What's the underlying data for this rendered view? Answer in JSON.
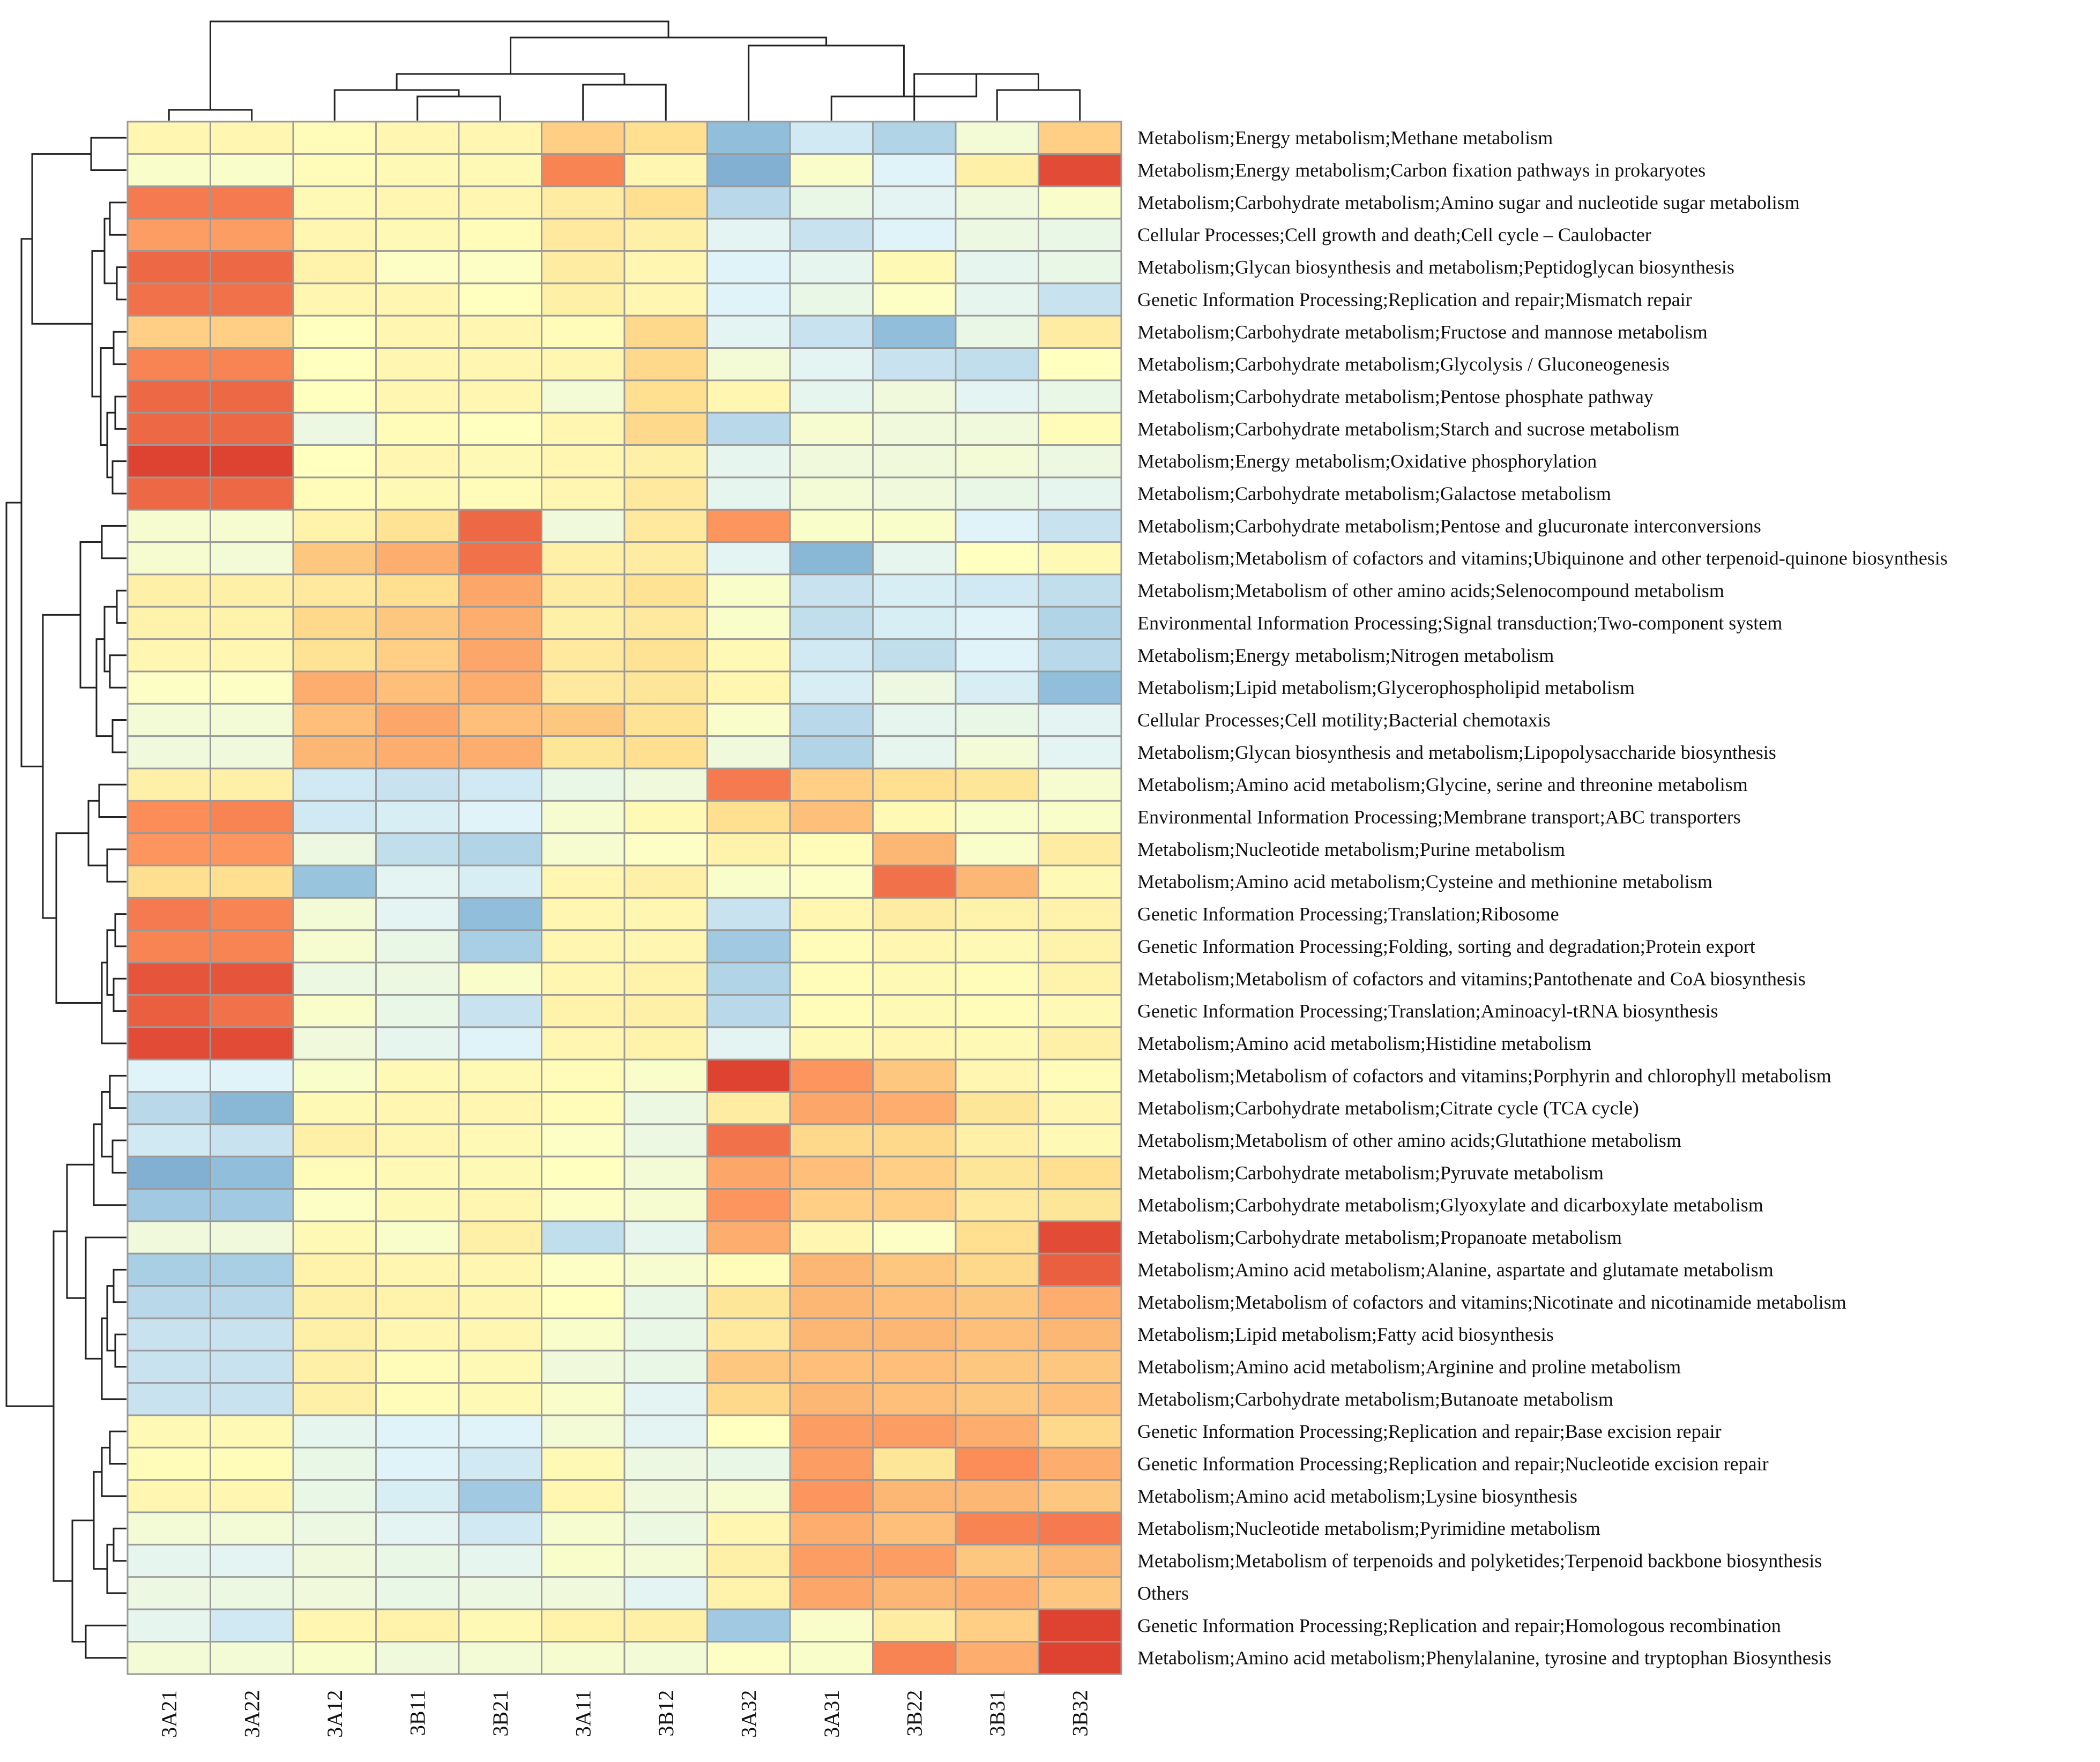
{
  "chart_data": {
    "type": "heatmap",
    "title": "",
    "columns": [
      "3A21",
      "3A22",
      "3A12",
      "3B11",
      "3B21",
      "3A11",
      "3B12",
      "3A32",
      "3A31",
      "3B22",
      "3B31",
      "3B32"
    ],
    "rows": [
      "Metabolism;Energy metabolism;Methane metabolism",
      "Metabolism;Energy metabolism;Carbon fixation pathways in prokaryotes",
      "Metabolism;Carbohydrate metabolism;Amino sugar and nucleotide sugar metabolism",
      "Cellular Processes;Cell growth and death;Cell cycle – Caulobacter",
      "Metabolism;Glycan biosynthesis and metabolism;Peptidoglycan biosynthesis",
      "Genetic Information Processing;Replication and repair;Mismatch repair",
      "Metabolism;Carbohydrate metabolism;Fructose and mannose metabolism",
      "Metabolism;Carbohydrate metabolism;Glycolysis / Gluconeogenesis",
      "Metabolism;Carbohydrate metabolism;Pentose phosphate pathway",
      "Metabolism;Carbohydrate metabolism;Starch and sucrose metabolism",
      "Metabolism;Energy metabolism;Oxidative phosphorylation",
      "Metabolism;Carbohydrate metabolism;Galactose metabolism",
      "Metabolism;Carbohydrate metabolism;Pentose and glucuronate interconversions",
      "Metabolism;Metabolism of cofactors and vitamins;Ubiquinone and other terpenoid-quinone biosynthesis",
      "Metabolism;Metabolism of other amino acids;Selenocompound metabolism",
      "Environmental Information Processing;Signal transduction;Two-component system",
      "Metabolism;Energy metabolism;Nitrogen metabolism",
      "Metabolism;Lipid metabolism;Glycerophospholipid metabolism",
      "Cellular Processes;Cell motility;Bacterial chemotaxis",
      "Metabolism;Glycan biosynthesis and metabolism;Lipopolysaccharide biosynthesis",
      "Metabolism;Amino acid metabolism;Glycine, serine and threonine metabolism",
      "Environmental Information Processing;Membrane transport;ABC transporters",
      "Metabolism;Nucleotide metabolism;Purine metabolism",
      "Metabolism;Amino acid metabolism;Cysteine and methionine metabolism",
      "Genetic Information Processing;Translation;Ribosome",
      "Genetic Information Processing;Folding, sorting and degradation;Protein export",
      "Metabolism;Metabolism of cofactors and vitamins;Pantothenate and CoA biosynthesis",
      "Genetic Information Processing;Translation;Aminoacyl-tRNA biosynthesis",
      "Metabolism;Amino acid metabolism;Histidine metabolism",
      "Metabolism;Metabolism of cofactors and vitamins;Porphyrin and chlorophyll metabolism",
      "Metabolism;Carbohydrate metabolism;Citrate cycle (TCA cycle)",
      "Metabolism;Metabolism of other amino acids;Glutathione metabolism",
      "Metabolism;Carbohydrate metabolism;Pyruvate metabolism",
      "Metabolism;Carbohydrate metabolism;Glyoxylate and dicarboxylate metabolism",
      "Metabolism;Carbohydrate metabolism;Propanoate metabolism",
      "Metabolism;Amino acid metabolism;Alanine, aspartate and glutamate metabolism",
      "Metabolism;Metabolism of cofactors and vitamins;Nicotinate and nicotinamide metabolism",
      "Metabolism;Lipid metabolism;Fatty acid biosynthesis",
      "Metabolism;Amino acid metabolism;Arginine and proline metabolism",
      "Metabolism;Carbohydrate metabolism;Butanoate metabolism",
      "Genetic Information Processing;Replication and repair;Base excision repair",
      "Genetic Information Processing;Replication and repair;Nucleotide excision repair",
      "Metabolism;Amino acid metabolism;Lysine biosynthesis",
      "Metabolism;Nucleotide metabolism;Pyrimidine metabolism",
      "Metabolism;Metabolism of terpenoids and polyketides;Terpenoid backbone biosynthesis",
      "Others",
      "Genetic Information Processing;Replication and repair;Homologous recombination",
      "Metabolism;Amino acid metabolism;Phenylalanine, tyrosine and tryptophan Biosynthesis"
    ],
    "scale_note": "estimated relative abundance, -3 (blue) to +3 (red)",
    "value_range": [
      -3,
      3
    ],
    "values": [
      [
        0.3,
        0.3,
        0.1,
        0.3,
        0.3,
        1.2,
        1.0,
        -2.0,
        -1.2,
        -1.6,
        -0.4,
        1.2
      ],
      [
        -0.2,
        -0.2,
        0.1,
        0.2,
        0.2,
        2.1,
        0.3,
        -2.2,
        -0.2,
        -1.0,
        0.5,
        2.7
      ],
      [
        2.2,
        2.2,
        0.2,
        0.3,
        0.3,
        0.6,
        1.0,
        -1.5,
        -0.7,
        -0.9,
        -0.5,
        -0.2
      ],
      [
        1.8,
        1.8,
        0.3,
        0.2,
        0.1,
        0.7,
        0.5,
        -0.9,
        -1.3,
        -1.0,
        -0.6,
        -0.7
      ],
      [
        2.4,
        2.4,
        0.4,
        -0.1,
        -0.1,
        0.6,
        0.3,
        -1.0,
        -0.8,
        0.2,
        -0.8,
        -0.7
      ],
      [
        2.3,
        2.3,
        0.3,
        0.3,
        0.0,
        0.5,
        0.3,
        -1.0,
        -0.7,
        -0.1,
        -0.8,
        -1.3
      ],
      [
        1.2,
        1.2,
        0.0,
        0.3,
        0.3,
        0.1,
        1.1,
        -0.9,
        -1.3,
        -2.0,
        -0.7,
        0.6
      ],
      [
        2.1,
        2.1,
        0.0,
        0.3,
        0.3,
        0.3,
        1.1,
        -0.4,
        -0.9,
        -1.3,
        -1.4,
        0.0
      ],
      [
        2.4,
        2.4,
        0.0,
        0.3,
        0.3,
        -0.4,
        1.0,
        0.3,
        -0.8,
        -0.5,
        -0.9,
        -0.7
      ],
      [
        2.4,
        2.4,
        -0.6,
        0.1,
        0.0,
        0.3,
        1.1,
        -1.5,
        -0.3,
        -0.5,
        -0.5,
        0.1
      ],
      [
        2.8,
        2.8,
        0.0,
        0.3,
        0.2,
        0.3,
        0.5,
        -0.8,
        -0.5,
        -0.5,
        -0.4,
        -0.6
      ],
      [
        2.4,
        2.4,
        0.1,
        0.2,
        0.1,
        0.3,
        0.7,
        -0.8,
        -0.4,
        -0.5,
        -0.7,
        -0.8
      ],
      [
        -0.3,
        -0.3,
        0.4,
        0.9,
        2.4,
        -0.5,
        0.7,
        1.9,
        -0.2,
        -0.2,
        -1.0,
        -1.3
      ],
      [
        -0.3,
        -0.4,
        1.3,
        1.6,
        2.3,
        0.5,
        0.6,
        -0.9,
        -2.1,
        -0.8,
        0.0,
        0.2
      ],
      [
        0.5,
        0.5,
        0.7,
        1.0,
        1.7,
        0.6,
        0.9,
        -0.2,
        -1.3,
        -1.1,
        -1.2,
        -1.4
      ],
      [
        0.4,
        0.4,
        1.1,
        1.3,
        1.6,
        0.5,
        0.7,
        -0.2,
        -1.4,
        -1.1,
        -1.0,
        -1.6
      ],
      [
        0.3,
        0.3,
        0.9,
        1.2,
        1.7,
        0.7,
        0.9,
        0.2,
        -1.2,
        -1.4,
        -1.0,
        -1.5
      ],
      [
        -0.1,
        -0.1,
        1.6,
        1.4,
        1.6,
        0.7,
        0.8,
        0.3,
        -1.1,
        -0.6,
        -1.1,
        -2.0
      ],
      [
        -0.4,
        -0.4,
        1.4,
        1.7,
        1.4,
        1.3,
        0.9,
        -0.2,
        -1.5,
        -0.8,
        -0.7,
        -0.9
      ],
      [
        -0.5,
        -0.5,
        1.5,
        1.6,
        1.6,
        0.8,
        1.0,
        -0.5,
        -1.6,
        -0.8,
        -0.4,
        -0.9
      ],
      [
        0.5,
        0.5,
        -1.2,
        -1.3,
        -1.2,
        -0.7,
        -0.5,
        2.2,
        1.2,
        1.0,
        0.8,
        -0.3
      ],
      [
        2.0,
        2.1,
        -1.2,
        -1.1,
        -1.0,
        -0.3,
        0.2,
        1.0,
        1.4,
        0.2,
        -0.2,
        -0.2
      ],
      [
        1.9,
        1.9,
        -0.6,
        -1.4,
        -1.6,
        -0.3,
        -0.1,
        0.4,
        0.1,
        1.5,
        -0.2,
        0.6
      ],
      [
        1.0,
        1.0,
        -1.9,
        -0.9,
        -1.1,
        0.3,
        0.5,
        -0.2,
        -0.1,
        2.3,
        1.5,
        0.2
      ],
      [
        2.2,
        2.1,
        -0.4,
        -0.9,
        -2.0,
        0.3,
        0.3,
        -1.3,
        0.3,
        0.6,
        0.4,
        0.4
      ],
      [
        2.1,
        2.1,
        -0.3,
        -0.7,
        -1.7,
        0.3,
        0.3,
        -1.8,
        0.1,
        0.3,
        0.2,
        0.4
      ],
      [
        2.6,
        2.6,
        -0.6,
        -0.6,
        -0.2,
        0.3,
        0.4,
        -1.6,
        0.1,
        0.2,
        0.1,
        0.4
      ],
      [
        2.5,
        2.3,
        -0.2,
        -0.7,
        -1.3,
        0.4,
        0.5,
        -1.5,
        0.1,
        0.2,
        0.1,
        0.2
      ],
      [
        2.7,
        2.7,
        -0.5,
        -0.8,
        -1.0,
        0.3,
        0.4,
        -0.9,
        0.2,
        0.3,
        0.2,
        0.5
      ],
      [
        -1.0,
        -1.0,
        -0.2,
        0.2,
        0.2,
        0.1,
        -0.2,
        2.8,
        1.9,
        1.3,
        0.3,
        0.1
      ],
      [
        -1.5,
        -2.1,
        0.2,
        0.3,
        0.3,
        0.1,
        -0.6,
        0.6,
        1.7,
        1.6,
        0.8,
        0.3
      ],
      [
        -1.2,
        -1.3,
        0.5,
        0.3,
        0.2,
        -0.1,
        -0.6,
        2.3,
        1.1,
        1.1,
        0.5,
        0.2
      ],
      [
        -2.2,
        -2.0,
        0.1,
        0.2,
        0.2,
        0.0,
        -0.4,
        1.7,
        1.4,
        1.2,
        0.8,
        1.0
      ],
      [
        -1.8,
        -1.8,
        -0.1,
        0.2,
        0.3,
        -0.1,
        -0.3,
        1.9,
        1.2,
        1.2,
        0.7,
        0.8
      ],
      [
        -0.5,
        -0.5,
        0.2,
        -0.2,
        0.5,
        -1.4,
        -0.8,
        1.6,
        0.3,
        -0.1,
        1.0,
        2.7
      ],
      [
        -1.7,
        -1.7,
        0.4,
        0.3,
        0.3,
        -0.1,
        -0.3,
        0.1,
        1.5,
        1.3,
        1.1,
        2.5
      ],
      [
        -1.5,
        -1.5,
        0.5,
        0.4,
        0.3,
        0.0,
        -0.7,
        0.8,
        1.5,
        1.4,
        1.3,
        1.6
      ],
      [
        -1.3,
        -1.3,
        0.5,
        0.3,
        0.3,
        -0.2,
        -0.7,
        0.7,
        1.5,
        1.5,
        1.4,
        1.5
      ],
      [
        -1.3,
        -1.3,
        0.5,
        0.1,
        0.2,
        -0.5,
        -0.7,
        1.3,
        1.4,
        1.4,
        1.3,
        1.3
      ],
      [
        -1.3,
        -1.3,
        0.5,
        0.1,
        0.2,
        -0.2,
        -0.9,
        1.1,
        1.5,
        1.4,
        1.3,
        1.4
      ],
      [
        0.2,
        0.2,
        -0.8,
        -1.0,
        -1.0,
        -0.4,
        -0.9,
        0.0,
        1.8,
        1.8,
        1.6,
        1.1
      ],
      [
        0.1,
        0.1,
        -0.7,
        -1.0,
        -1.2,
        0.2,
        -0.6,
        -0.7,
        1.8,
        0.8,
        2.0,
        1.6
      ],
      [
        0.3,
        0.3,
        -0.7,
        -1.1,
        -1.8,
        0.3,
        -0.5,
        -0.3,
        1.9,
        1.5,
        1.5,
        1.3
      ],
      [
        -0.4,
        -0.4,
        -0.6,
        -0.9,
        -1.2,
        -0.3,
        -0.6,
        0.3,
        1.6,
        1.4,
        2.1,
        2.2
      ],
      [
        -0.8,
        -0.9,
        -0.5,
        -0.7,
        -0.8,
        -0.2,
        -0.4,
        0.5,
        1.8,
        1.8,
        1.3,
        1.5
      ],
      [
        -0.6,
        -0.6,
        -0.5,
        -0.7,
        -0.6,
        -0.5,
        -0.9,
        0.4,
        1.7,
        1.5,
        1.6,
        1.3
      ],
      [
        -0.8,
        -1.2,
        0.3,
        0.4,
        0.2,
        0.4,
        0.5,
        -1.8,
        -0.2,
        0.6,
        1.2,
        2.8
      ],
      [
        -0.4,
        -0.4,
        -0.2,
        -0.5,
        -0.4,
        -0.3,
        -0.4,
        -0.1,
        -0.2,
        2.1,
        1.6,
        2.8
      ]
    ],
    "color_scale": {
      "low": "#4575b4",
      "mid": "#ffffbf",
      "high": "#d73027",
      "stops": [
        "#4575b4",
        "#91bfdb",
        "#e0f3f8",
        "#ffffbf",
        "#fee090",
        "#fc8d59",
        "#d73027"
      ]
    },
    "row_dendrogram": "hierarchical clustering tree on left",
    "column_dendrogram": "hierarchical clustering tree on top"
  }
}
